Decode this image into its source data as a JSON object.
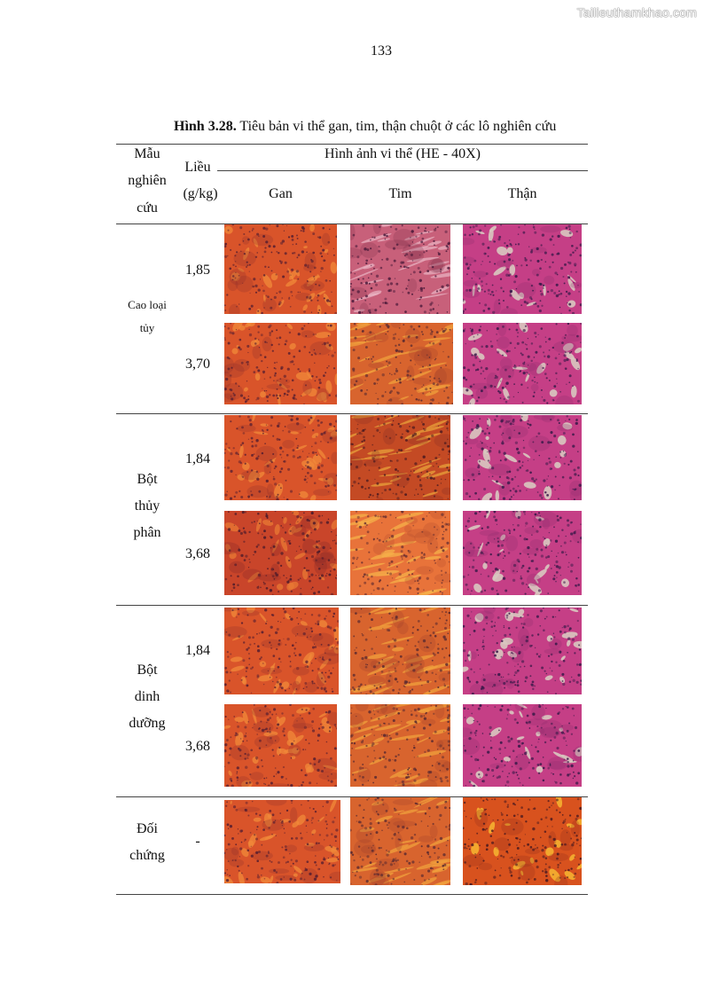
{
  "watermark": "Tailieuthamkhao.com",
  "page_number": "133",
  "caption": {
    "label": "Hình 3.28.",
    "text": " Tiêu bản vi thể gan, tim, thận chuột ở các lô nghiên cứu"
  },
  "table": {
    "header": {
      "sample_lines": [
        "Mẫu",
        "nghiên",
        "cứu"
      ],
      "dose_lines": [
        "Liều",
        "(g/kg)"
      ],
      "images_title": "Hình ảnh vi thể (HE - 40X)",
      "organs": [
        "Gan",
        "Tim",
        "Thận"
      ]
    },
    "groups": [
      {
        "name_lines": [
          "Cao loại",
          "tủy"
        ],
        "doses": [
          "1,85",
          "3,70"
        ]
      },
      {
        "name_lines": [
          "Bột",
          "thủy",
          "phân"
        ],
        "doses": [
          "1,84",
          "3,68"
        ]
      },
      {
        "name_lines": [
          "Bột",
          "dinh",
          "dưỡng"
        ],
        "doses": [
          "1,84",
          "3,68"
        ]
      },
      {
        "name_lines": [
          "Đối",
          "chứng"
        ],
        "doses": [
          "-"
        ]
      }
    ]
  },
  "colors": {
    "liver_base": "#d9542a",
    "heart_base": "#d8642e",
    "heart_pink": "#c8607a",
    "kidney_base": "#c53f86",
    "control_kidney": "#d8521e"
  }
}
